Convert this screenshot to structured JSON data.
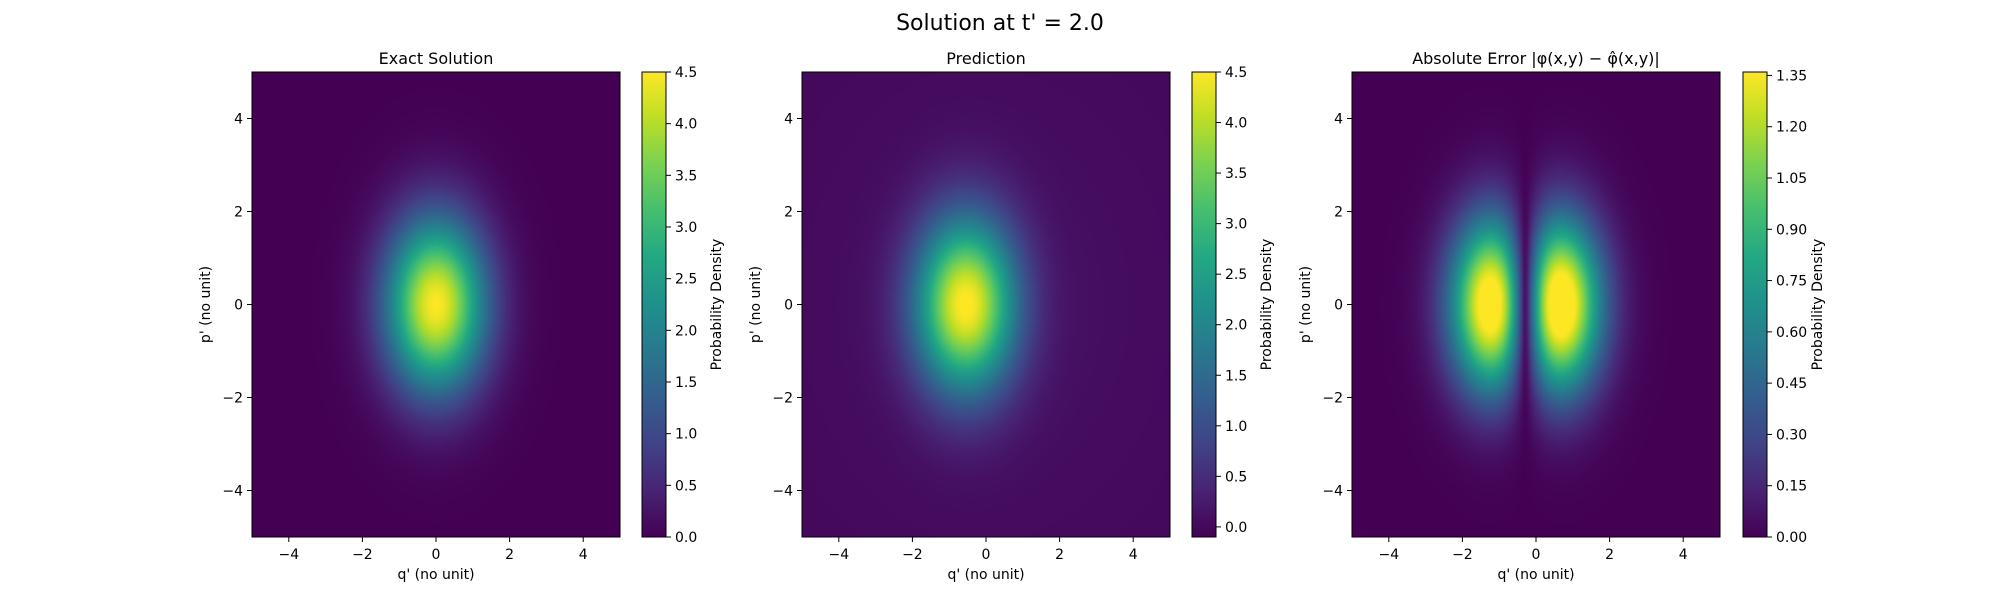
{
  "figure": {
    "suptitle": "Solution at t' = 2.0"
  },
  "chart_data": [
    {
      "type": "heatmap",
      "title": "Exact Solution",
      "xlabel": "q' (no unit)",
      "ylabel": "p' (no unit)",
      "xlim": [
        -5,
        5
      ],
      "ylim": [
        -5,
        5
      ],
      "xticks": [
        -4,
        -2,
        0,
        2,
        4
      ],
      "yticks": [
        -4,
        -2,
        0,
        2,
        4
      ],
      "colorbar": {
        "label": "Probability Density",
        "range": [
          0.0,
          4.5
        ],
        "ticks": [
          "0.0",
          "0.5",
          "1.0",
          "1.5",
          "2.0",
          "2.5",
          "3.0",
          "3.5",
          "4.0",
          "4.5"
        ],
        "colormap": "viridis"
      },
      "field": {
        "kind": "gaussian",
        "cx": 0.0,
        "cy": 0.0,
        "sx": 0.95,
        "sy": 1.3,
        "peak": 4.5
      }
    },
    {
      "type": "heatmap",
      "title": "Prediction",
      "xlabel": "q' (no unit)",
      "ylabel": "p' (no unit)",
      "xlim": [
        -5,
        5
      ],
      "ylim": [
        -5,
        5
      ],
      "xticks": [
        -4,
        -2,
        0,
        2,
        4
      ],
      "yticks": [
        -4,
        -2,
        0,
        2,
        4
      ],
      "colorbar": {
        "label": "Probability Density",
        "range": [
          -0.1,
          4.5
        ],
        "ticks": [
          "0.0",
          "0.5",
          "1.0",
          "1.5",
          "2.0",
          "2.5",
          "3.0",
          "3.5",
          "4.0",
          "4.5"
        ],
        "colormap": "viridis"
      },
      "field": {
        "kind": "gaussian",
        "cx": -0.55,
        "cy": 0.0,
        "sx": 0.95,
        "sy": 1.3,
        "peak": 4.45,
        "offset": 0.12
      }
    },
    {
      "type": "heatmap",
      "title": "Absolute Error |φ(x,y) − φ̂(x,y)|",
      "xlabel": "q' (no unit)",
      "ylabel": "p' (no unit)",
      "xlim": [
        -5,
        5
      ],
      "ylim": [
        -5,
        5
      ],
      "xticks": [
        -4,
        -2,
        0,
        2,
        4
      ],
      "yticks": [
        -4,
        -2,
        0,
        2,
        4
      ],
      "colorbar": {
        "label": "Probability Density",
        "range": [
          0.0,
          1.36
        ],
        "ticks": [
          "0.00",
          "0.15",
          "0.30",
          "0.45",
          "0.60",
          "0.75",
          "0.90",
          "1.05",
          "1.20",
          "1.35"
        ],
        "colormap": "viridis"
      },
      "field": {
        "kind": "abs_difference",
        "a": {
          "cx": 0.0,
          "cy": 0.0,
          "sx": 0.95,
          "sy": 1.3,
          "peak": 4.5
        },
        "b": {
          "cx": -0.55,
          "cy": 0.0,
          "sx": 0.95,
          "sy": 1.3,
          "peak": 4.45
        }
      }
    }
  ]
}
